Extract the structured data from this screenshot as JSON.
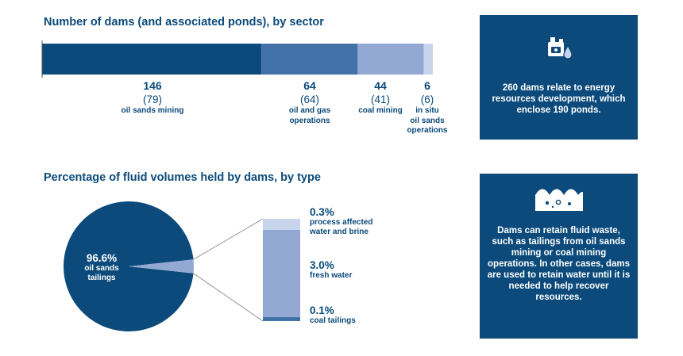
{
  "colors": {
    "dark_blue": "#0b4a7a",
    "mid_blue": "#4372a8",
    "light_blue": "#93a8d3",
    "pale_blue": "#c8d4ec",
    "panel_bg": "#0b4a7a"
  },
  "chart_data": [
    {
      "type": "bar",
      "orientation": "horizontal-stacked",
      "title": "Number of dams (and associated ponds), by sector",
      "categories": [
        "oil sands mining",
        "oil and gas operations",
        "coal mining",
        "in situ oil sands operations"
      ],
      "category_lines": [
        [
          "oil sands mining"
        ],
        [
          "oil and gas",
          "operations"
        ],
        [
          "coal mining"
        ],
        [
          "in situ",
          "oil sands",
          "operations"
        ]
      ],
      "values": [
        146,
        64,
        44,
        6
      ],
      "labels": [
        "146",
        "64",
        "44",
        "6"
      ],
      "ponds": [
        79,
        64,
        41,
        6
      ],
      "pond_labels": [
        "(79)",
        "(64)",
        "(41)",
        "(6)"
      ],
      "xlim": [
        0,
        260
      ]
    },
    {
      "type": "pie",
      "title": "Percentage of fluid volumes held by dams, by type",
      "main_slice": {
        "label": "oil sands tailings",
        "lines": [
          "oil sands",
          "tailings"
        ],
        "value": 96.6,
        "value_label": "96.6%"
      },
      "breakdown": [
        {
          "label": "process affected water and brine",
          "lines": [
            "process affected",
            "water and brine"
          ],
          "value": 0.3,
          "value_label": "0.3%"
        },
        {
          "label": "fresh water",
          "lines": [
            "fresh water"
          ],
          "value": 3.0,
          "value_label": "3.0%"
        },
        {
          "label": "coal tailings",
          "lines": [
            "coal tailings"
          ],
          "value": 0.1,
          "value_label": "0.1%"
        }
      ]
    }
  ],
  "panels": {
    "energy_text": "260 dams relate to energy resources development, which enclose 190 ponds.",
    "waste_text": "Dams can retain fluid waste, such as tailings from oil sands mining or coal mining operations. In other cases, dams are used to retain water until it is needed to help recover resources.",
    "energy_icon": "oil-and-water-drop-icon",
    "waste_icon": "fluid-waves-icon"
  }
}
